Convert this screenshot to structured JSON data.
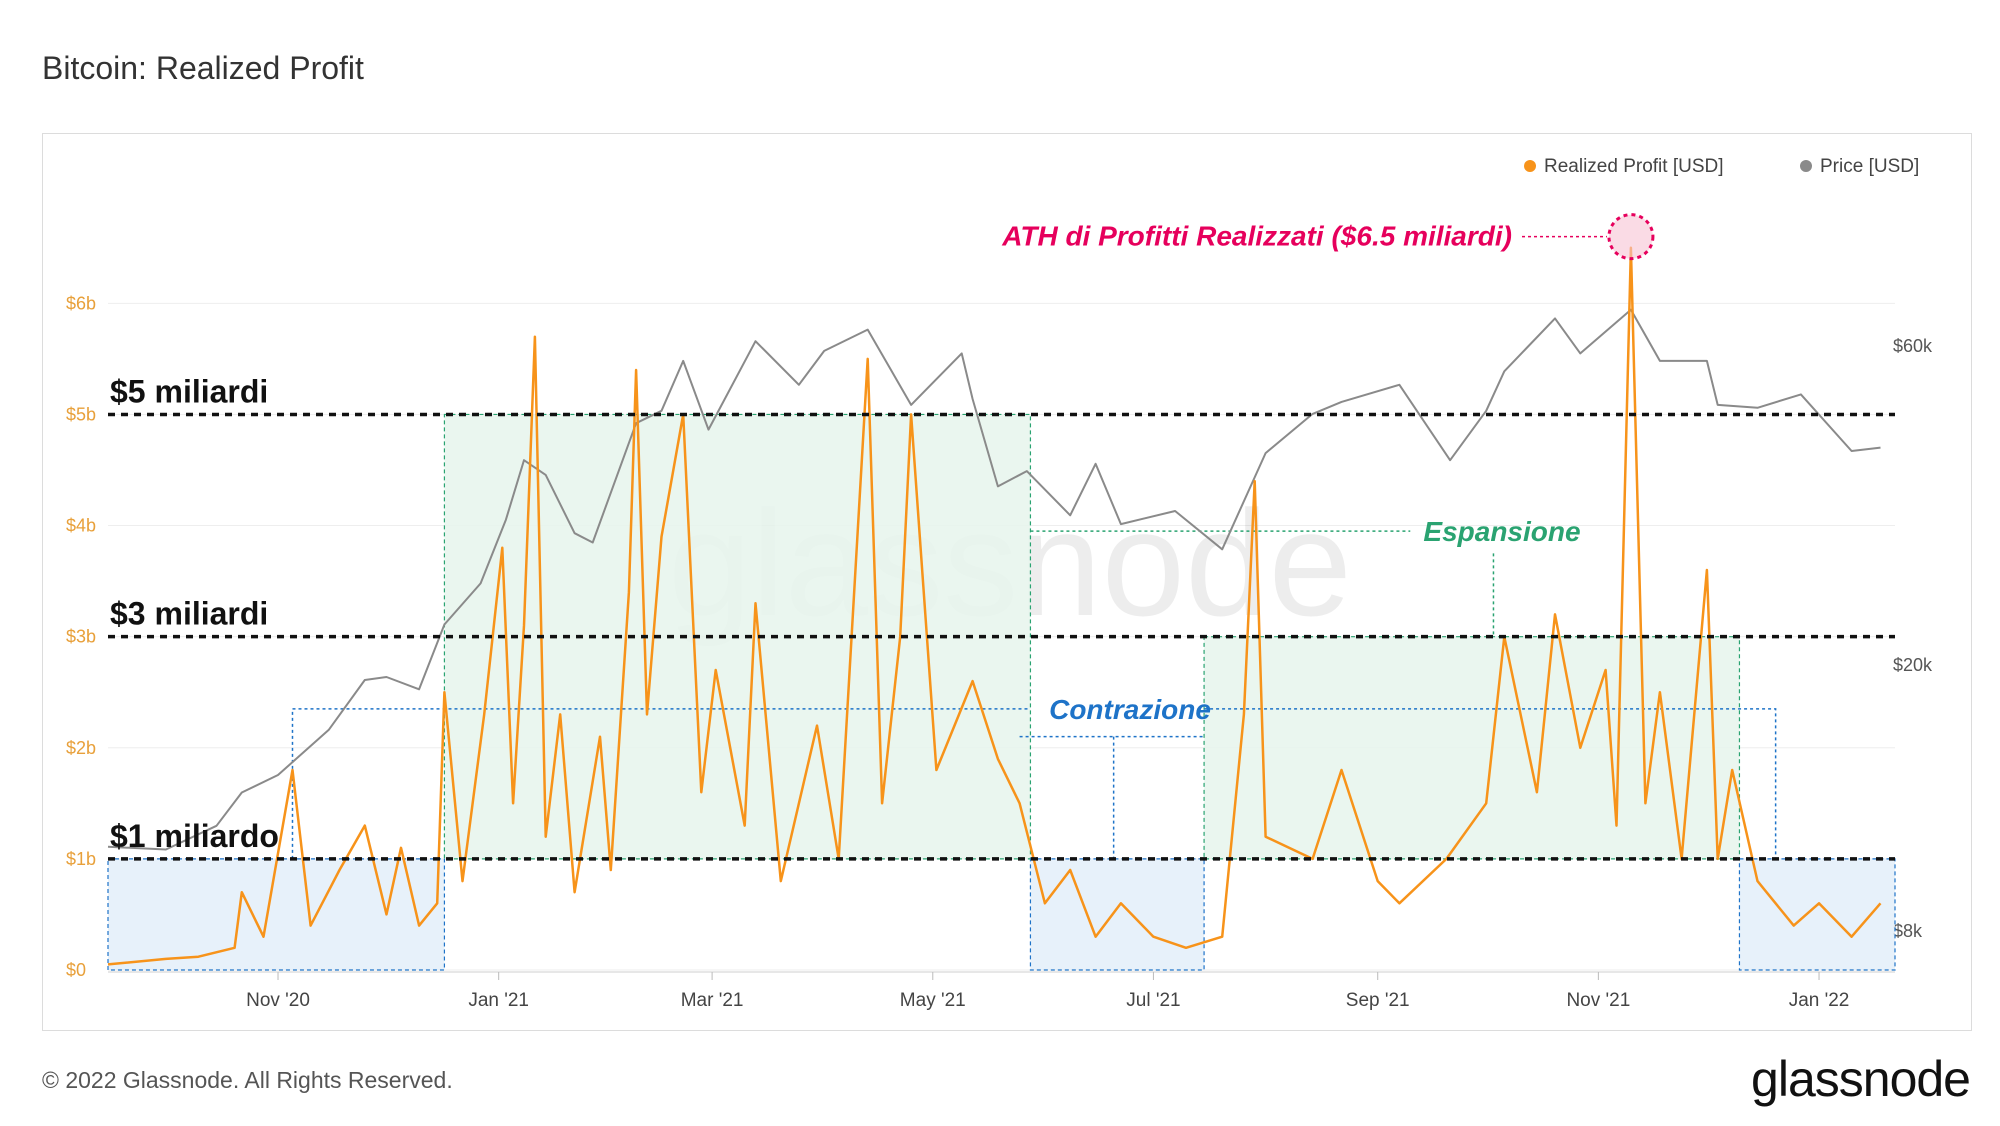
{
  "title": "Bitcoin: Realized Profit",
  "footer": {
    "copyright": "© 2022 Glassnode. All Rights Reserved.",
    "logo": "glassnode"
  },
  "watermark": "glassnode",
  "colors": {
    "profit": "#f7931a",
    "price": "#8a8a8a",
    "axis_left": "#e8a03a",
    "annotation_ath": "#e6005c",
    "expansion": "#2aa371",
    "contraction": "#1e73c8"
  },
  "chart_data": {
    "type": "line",
    "x_range": [
      "2020-09-15",
      "2022-01-22"
    ],
    "x_ticks": [
      {
        "date": "2020-11-01",
        "label": "Nov '20"
      },
      {
        "date": "2021-01-01",
        "label": "Jan '21"
      },
      {
        "date": "2021-03-01",
        "label": "Mar '21"
      },
      {
        "date": "2021-05-01",
        "label": "May '21"
      },
      {
        "date": "2021-07-01",
        "label": "Jul '21"
      },
      {
        "date": "2021-09-01",
        "label": "Sep '21"
      },
      {
        "date": "2021-11-01",
        "label": "Nov '21"
      },
      {
        "date": "2022-01-01",
        "label": "Jan '22"
      }
    ],
    "y_left": {
      "range": [
        0,
        7.2
      ],
      "unit": "billion USD",
      "ticks": [
        {
          "v": 0,
          "label": "$0"
        },
        {
          "v": 1,
          "label": "$1b"
        },
        {
          "v": 2,
          "label": "$2b"
        },
        {
          "v": 3,
          "label": "$3b"
        },
        {
          "v": 4,
          "label": "$4b"
        },
        {
          "v": 5,
          "label": "$5b"
        },
        {
          "v": 6,
          "label": "$6b"
        }
      ]
    },
    "y_right": {
      "scale": "log",
      "range": [
        7000,
        110000
      ],
      "ticks": [
        {
          "v": 8000,
          "label": "$8k"
        },
        {
          "v": 20000,
          "label": "$20k"
        },
        {
          "v": 60000,
          "label": "$60k"
        }
      ]
    },
    "legend": {
      "placement": "top-right",
      "entries": [
        {
          "name": "Realized Profit [USD]",
          "color": "#f7931a"
        },
        {
          "name": "Price [USD]",
          "color": "#8a8a8a"
        }
      ]
    },
    "series": [
      {
        "name": "Price [USD]",
        "axis": "right",
        "points": [
          [
            "2020-09-15",
            10700
          ],
          [
            "2020-10-01",
            10600
          ],
          [
            "2020-10-15",
            11500
          ],
          [
            "2020-10-22",
            12900
          ],
          [
            "2020-11-01",
            13700
          ],
          [
            "2020-11-15",
            16000
          ],
          [
            "2020-11-25",
            19000
          ],
          [
            "2020-12-01",
            19200
          ],
          [
            "2020-12-10",
            18400
          ],
          [
            "2020-12-17",
            23000
          ],
          [
            "2020-12-27",
            26500
          ],
          [
            "2021-01-03",
            33000
          ],
          [
            "2021-01-08",
            40500
          ],
          [
            "2021-01-14",
            38500
          ],
          [
            "2021-01-22",
            31500
          ],
          [
            "2021-01-27",
            30500
          ],
          [
            "2021-02-08",
            46000
          ],
          [
            "2021-02-15",
            48000
          ],
          [
            "2021-02-21",
            57000
          ],
          [
            "2021-02-28",
            45000
          ],
          [
            "2021-03-13",
            61000
          ],
          [
            "2021-03-25",
            52500
          ],
          [
            "2021-04-01",
            59000
          ],
          [
            "2021-04-13",
            63500
          ],
          [
            "2021-04-25",
            49000
          ],
          [
            "2021-05-09",
            58500
          ],
          [
            "2021-05-12",
            50000
          ],
          [
            "2021-05-19",
            37000
          ],
          [
            "2021-05-27",
            39000
          ],
          [
            "2021-06-08",
            33500
          ],
          [
            "2021-06-15",
            40000
          ],
          [
            "2021-06-22",
            32500
          ],
          [
            "2021-07-07",
            34000
          ],
          [
            "2021-07-20",
            29800
          ],
          [
            "2021-08-01",
            41500
          ],
          [
            "2021-08-14",
            47500
          ],
          [
            "2021-08-22",
            49500
          ],
          [
            "2021-09-07",
            52500
          ],
          [
            "2021-09-21",
            40500
          ],
          [
            "2021-10-01",
            48000
          ],
          [
            "2021-10-06",
            55000
          ],
          [
            "2021-10-20",
            66000
          ],
          [
            "2021-10-27",
            58500
          ],
          [
            "2021-11-10",
            68000
          ],
          [
            "2021-11-18",
            57000
          ],
          [
            "2021-12-01",
            57000
          ],
          [
            "2021-12-04",
            49000
          ],
          [
            "2021-12-15",
            48500
          ],
          [
            "2021-12-27",
            50800
          ],
          [
            "2022-01-10",
            41800
          ],
          [
            "2022-01-18",
            42300
          ]
        ]
      },
      {
        "name": "Realized Profit [USD]",
        "axis": "left",
        "unit": "billion USD",
        "points": [
          [
            "2020-09-15",
            0.05
          ],
          [
            "2020-10-01",
            0.1
          ],
          [
            "2020-10-10",
            0.12
          ],
          [
            "2020-10-20",
            0.2
          ],
          [
            "2020-10-22",
            0.7
          ],
          [
            "2020-10-28",
            0.3
          ],
          [
            "2020-11-05",
            1.8
          ],
          [
            "2020-11-10",
            0.4
          ],
          [
            "2020-11-18",
            0.9
          ],
          [
            "2020-11-25",
            1.3
          ],
          [
            "2020-12-01",
            0.5
          ],
          [
            "2020-12-05",
            1.1
          ],
          [
            "2020-12-10",
            0.4
          ],
          [
            "2020-12-15",
            0.6
          ],
          [
            "2020-12-17",
            2.5
          ],
          [
            "2020-12-22",
            0.8
          ],
          [
            "2020-12-28",
            2.3
          ],
          [
            "2021-01-02",
            3.8
          ],
          [
            "2021-01-05",
            1.5
          ],
          [
            "2021-01-08",
            3.1
          ],
          [
            "2021-01-11",
            5.7
          ],
          [
            "2021-01-14",
            1.2
          ],
          [
            "2021-01-18",
            2.3
          ],
          [
            "2021-01-22",
            0.7
          ],
          [
            "2021-01-29",
            2.1
          ],
          [
            "2021-02-01",
            0.9
          ],
          [
            "2021-02-06",
            3.4
          ],
          [
            "2021-02-08",
            5.4
          ],
          [
            "2021-02-11",
            2.3
          ],
          [
            "2021-02-15",
            3.9
          ],
          [
            "2021-02-21",
            5.0
          ],
          [
            "2021-02-26",
            1.6
          ],
          [
            "2021-03-02",
            2.7
          ],
          [
            "2021-03-10",
            1.3
          ],
          [
            "2021-03-13",
            3.3
          ],
          [
            "2021-03-20",
            0.8
          ],
          [
            "2021-03-30",
            2.2
          ],
          [
            "2021-04-05",
            1.0
          ],
          [
            "2021-04-13",
            5.5
          ],
          [
            "2021-04-17",
            1.5
          ],
          [
            "2021-04-22",
            3.0
          ],
          [
            "2021-04-25",
            5.0
          ],
          [
            "2021-05-02",
            1.8
          ],
          [
            "2021-05-12",
            2.6
          ],
          [
            "2021-05-19",
            1.9
          ],
          [
            "2021-05-25",
            1.5
          ],
          [
            "2021-06-01",
            0.6
          ],
          [
            "2021-06-08",
            0.9
          ],
          [
            "2021-06-15",
            0.3
          ],
          [
            "2021-06-22",
            0.6
          ],
          [
            "2021-07-01",
            0.3
          ],
          [
            "2021-07-10",
            0.2
          ],
          [
            "2021-07-20",
            0.3
          ],
          [
            "2021-07-26",
            2.3
          ],
          [
            "2021-07-29",
            4.4
          ],
          [
            "2021-08-01",
            1.2
          ],
          [
            "2021-08-14",
            1.0
          ],
          [
            "2021-08-22",
            1.8
          ],
          [
            "2021-09-01",
            0.8
          ],
          [
            "2021-09-07",
            0.6
          ],
          [
            "2021-09-20",
            1.0
          ],
          [
            "2021-10-01",
            1.5
          ],
          [
            "2021-10-06",
            3.0
          ],
          [
            "2021-10-15",
            1.6
          ],
          [
            "2021-10-20",
            3.2
          ],
          [
            "2021-10-27",
            2.0
          ],
          [
            "2021-11-03",
            2.7
          ],
          [
            "2021-11-06",
            1.3
          ],
          [
            "2021-11-10",
            6.5
          ],
          [
            "2021-11-14",
            1.5
          ],
          [
            "2021-11-18",
            2.5
          ],
          [
            "2021-11-24",
            1.0
          ],
          [
            "2021-12-01",
            3.6
          ],
          [
            "2021-12-04",
            1.0
          ],
          [
            "2021-12-08",
            1.8
          ],
          [
            "2021-12-15",
            0.8
          ],
          [
            "2021-12-25",
            0.4
          ],
          [
            "2022-01-01",
            0.6
          ],
          [
            "2022-01-10",
            0.3
          ],
          [
            "2022-01-18",
            0.6
          ]
        ]
      }
    ],
    "reference_lines": [
      {
        "value": 5,
        "label": "$5 miliardi"
      },
      {
        "value": 3,
        "label": "$3 miliardi"
      },
      {
        "value": 1,
        "label": "$1 miliardo"
      }
    ],
    "regions": [
      {
        "type": "contraction",
        "from": "2020-09-15",
        "to": "2020-12-17",
        "y": [
          0,
          1
        ]
      },
      {
        "type": "expansion",
        "from": "2020-12-17",
        "to": "2021-05-28",
        "y": [
          1,
          5
        ]
      },
      {
        "type": "contraction",
        "from": "2021-05-28",
        "to": "2021-07-15",
        "y": [
          0,
          1
        ]
      },
      {
        "type": "expansion",
        "from": "2021-07-15",
        "to": "2021-12-10",
        "y": [
          1,
          3
        ]
      },
      {
        "type": "contraction",
        "from": "2021-12-10",
        "to": "2022-01-22",
        "y": [
          0,
          1
        ]
      }
    ],
    "annotations": {
      "ath": {
        "text": "ATH di Profitti Realizzati ($6.5 miliardi)",
        "date": "2021-11-10",
        "value": 6.5
      },
      "expansion": "Espansione",
      "contraction": "Contrazione"
    }
  }
}
